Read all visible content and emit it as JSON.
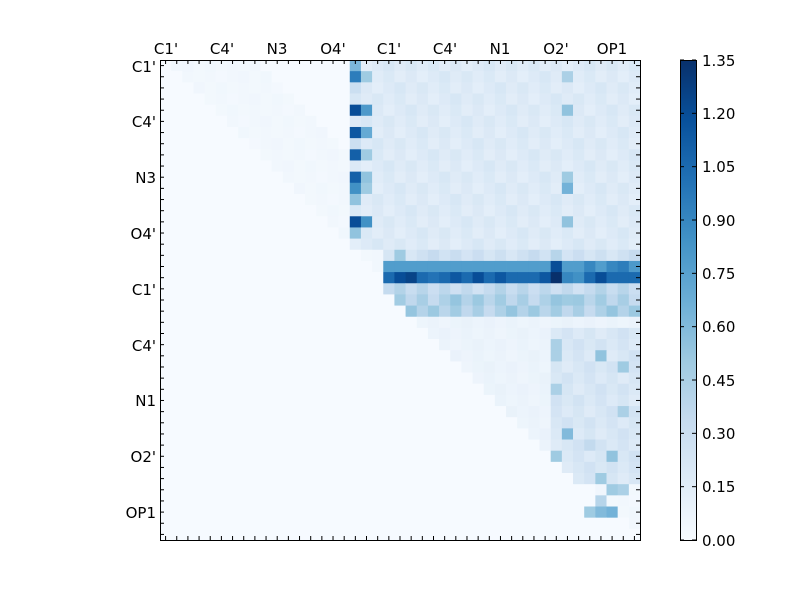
{
  "chart_data": {
    "type": "heatmap",
    "title": "",
    "xlabel": "",
    "ylabel": "",
    "x_ticklabels": [
      "C1'",
      "C4'",
      "N3",
      "O4'",
      "C1'",
      "C4'",
      "N1",
      "O2'",
      "OP1"
    ],
    "y_ticklabels": [
      "C1'",
      "C4'",
      "N3",
      "O4'",
      "C1'",
      "C4'",
      "N1",
      "O2'",
      "OP1"
    ],
    "tick_label_positions": [
      0.5,
      5.5,
      10.5,
      15.5,
      20.5,
      25.5,
      30.5,
      35.5,
      40.5
    ],
    "matrix_size": 43,
    "colorbar": {
      "ticks": [
        "0.00",
        "0.15",
        "0.30",
        "0.45",
        "0.60",
        "0.75",
        "0.90",
        "1.05",
        "1.20",
        "1.35"
      ],
      "vmin": 0.0,
      "vmax": 1.35,
      "colormap": "Blues",
      "low_color": "#f7fbff",
      "high_color": "#08306b"
    },
    "background_value": 0.01,
    "regions": [
      {
        "rows": [
          0,
          16
        ],
        "cols": [
          17,
          42
        ],
        "value": 0.18
      },
      {
        "rows": [
          17,
          20
        ],
        "cols": [
          20,
          42
        ],
        "value": 0.28
      },
      {
        "rows": [
          21,
          22
        ],
        "cols": [
          20,
          42
        ],
        "value": 0.45
      },
      {
        "rows": [
          23,
          37
        ],
        "cols": [
          22,
          42
        ],
        "value": 0.08
      },
      {
        "rows": [
          24,
          37
        ],
        "cols": [
          35,
          42
        ],
        "value": 0.22
      }
    ],
    "diagonal_band": {
      "from": 1,
      "to": 8,
      "value": 0.04
    },
    "stripes": [
      {
        "row": 18,
        "cols": [
          20,
          42
        ],
        "value": 0.78
      },
      {
        "row": 19,
        "cols": [
          20,
          42
        ],
        "value": 1.05
      },
      {
        "row": 20,
        "cols": [
          20,
          42
        ],
        "value": 0.35
      }
    ],
    "cells": [
      [
        0,
        17,
        0.62
      ],
      [
        1,
        17,
        0.95
      ],
      [
        1,
        18,
        0.5
      ],
      [
        2,
        17,
        0.3
      ],
      [
        4,
        17,
        1.2
      ],
      [
        4,
        18,
        0.8
      ],
      [
        6,
        17,
        1.15
      ],
      [
        6,
        18,
        0.7
      ],
      [
        7,
        17,
        0.3
      ],
      [
        8,
        17,
        1.1
      ],
      [
        8,
        18,
        0.5
      ],
      [
        10,
        17,
        1.1
      ],
      [
        10,
        18,
        0.55
      ],
      [
        11,
        17,
        0.85
      ],
      [
        11,
        18,
        0.5
      ],
      [
        12,
        17,
        0.55
      ],
      [
        14,
        17,
        1.2
      ],
      [
        14,
        18,
        0.85
      ],
      [
        15,
        17,
        0.55
      ],
      [
        1,
        36,
        0.45
      ],
      [
        4,
        36,
        0.55
      ],
      [
        10,
        36,
        0.5
      ],
      [
        11,
        36,
        0.65
      ],
      [
        14,
        36,
        0.55
      ],
      [
        17,
        21,
        0.5
      ],
      [
        17,
        35,
        0.4
      ],
      [
        19,
        21,
        1.2
      ],
      [
        19,
        22,
        1.25
      ],
      [
        19,
        24,
        1.0
      ],
      [
        19,
        26,
        1.15
      ],
      [
        19,
        28,
        1.2
      ],
      [
        19,
        30,
        1.15
      ],
      [
        19,
        34,
        1.15
      ],
      [
        19,
        35,
        1.35
      ],
      [
        19,
        36,
        0.9
      ],
      [
        19,
        37,
        0.85
      ],
      [
        19,
        39,
        1.2
      ],
      [
        18,
        35,
        1.2
      ],
      [
        18,
        38,
        0.9
      ],
      [
        18,
        40,
        0.9
      ],
      [
        18,
        41,
        0.95
      ],
      [
        18,
        42,
        0.8
      ],
      [
        21,
        36,
        0.5
      ],
      [
        25,
        35,
        0.45
      ],
      [
        26,
        35,
        0.45
      ],
      [
        26,
        39,
        0.55
      ],
      [
        27,
        41,
        0.5
      ],
      [
        29,
        35,
        0.45
      ],
      [
        31,
        41,
        0.45
      ],
      [
        33,
        36,
        0.6
      ],
      [
        34,
        38,
        0.35
      ],
      [
        35,
        35,
        0.5
      ],
      [
        35,
        40,
        0.55
      ],
      [
        37,
        39,
        0.5
      ],
      [
        38,
        40,
        0.5
      ],
      [
        38,
        41,
        0.45
      ],
      [
        39,
        39,
        0.4
      ],
      [
        40,
        38,
        0.5
      ],
      [
        40,
        39,
        0.6
      ],
      [
        40,
        40,
        0.65
      ]
    ]
  }
}
